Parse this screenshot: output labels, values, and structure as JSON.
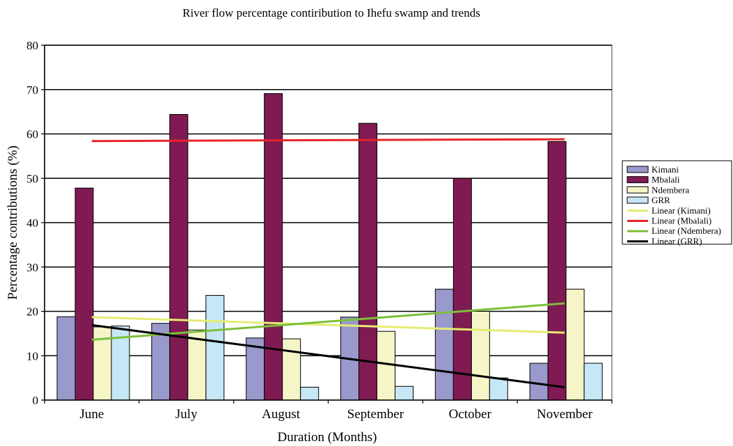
{
  "chart_data": {
    "type": "bar",
    "title": "River flow percentage contiribution to Ihefu swamp and trends",
    "xlabel": "Duration (Months)",
    "ylabel": "Percentage contributions (%)",
    "ylim": [
      0,
      80
    ],
    "yticks": [
      0,
      10,
      20,
      30,
      40,
      50,
      60,
      70,
      80
    ],
    "grid": true,
    "legend_position": "right",
    "categories": [
      "June",
      "July",
      "August",
      "September",
      "October",
      "November"
    ],
    "series": [
      {
        "name": "Kimani",
        "color": "#9999cc",
        "values": [
          18.8,
          17.3,
          14.0,
          18.7,
          25.0,
          8.3
        ]
      },
      {
        "name": "Mbalali",
        "color": "#7f1b52",
        "values": [
          47.8,
          64.4,
          69.1,
          62.4,
          50.0,
          58.3
        ]
      },
      {
        "name": "Ndembera",
        "color": "#f5f5c8",
        "values": [
          16.5,
          15.8,
          13.8,
          15.5,
          20.0,
          25.0
        ]
      },
      {
        "name": "GRR",
        "color": "#c6e7f5",
        "values": [
          16.7,
          23.6,
          2.9,
          3.1,
          5.0,
          8.3
        ]
      }
    ],
    "trendlines": [
      {
        "name": "Linear (Kimani)",
        "color": "#e6ec73",
        "start": 18.7,
        "end": 15.2
      },
      {
        "name": "Linear (Mbalali)",
        "color": "#e8232a",
        "start": 58.4,
        "end": 58.8
      },
      {
        "name": "Linear (Ndembera)",
        "color": "#7cbf3a",
        "start": 13.6,
        "end": 21.8
      },
      {
        "name": "Linear (GRR)",
        "color": "#000000",
        "start": 16.9,
        "end": 2.9
      }
    ]
  }
}
